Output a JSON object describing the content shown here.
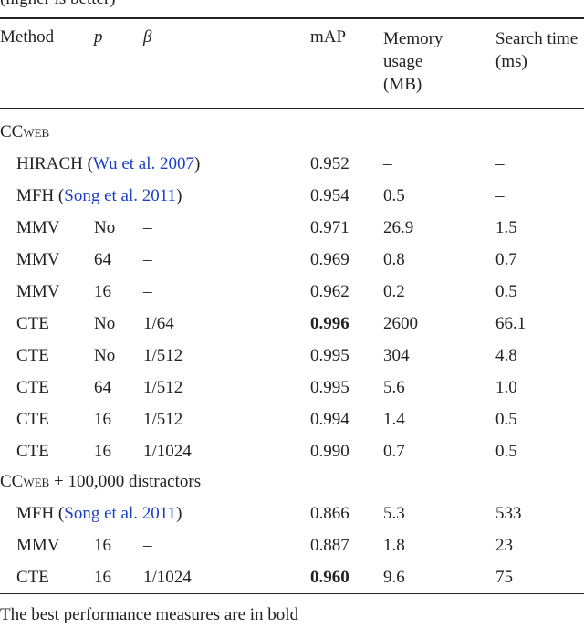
{
  "caption": "(higher is better)",
  "table": {
    "header": [
      "Method",
      "p",
      "β",
      "mAP",
      "Memory usage (MB)",
      "Search time (ms)"
    ],
    "sections": [
      {
        "name": "CCweb",
        "suffix": null,
        "rows": [
          {
            "cells": [
              [
                {
                  "text": "HIRACH ("
                },
                {
                  "text": "Wu et al. 2007",
                  "link": true
                },
                {
                  "text": ")"
                }
              ],
              "",
              "",
              "0.952",
              "–",
              "–"
            ]
          },
          {
            "cells": [
              [
                {
                  "text": "MFH ("
                },
                {
                  "text": "Song et al. 2011",
                  "link": true
                },
                {
                  "text": ")"
                }
              ],
              "",
              "",
              "0.954",
              "0.5",
              "–"
            ]
          },
          {
            "cells": [
              [
                {
                  "text": "MMV"
                }
              ],
              "No",
              "–",
              "0.971",
              "26.9",
              "1.5"
            ]
          },
          {
            "cells": [
              [
                {
                  "text": "MMV"
                }
              ],
              "64",
              "–",
              "0.969",
              "0.8",
              "0.7"
            ]
          },
          {
            "cells": [
              [
                {
                  "text": "MMV"
                }
              ],
              "16",
              "–",
              "0.962",
              "0.2",
              "0.5"
            ]
          },
          {
            "cells": [
              [
                {
                  "text": "CTE"
                }
              ],
              "No",
              "1/64",
              "0.996",
              "2600",
              "66.1"
            ],
            "bold_col": 3
          },
          {
            "cells": [
              [
                {
                  "text": "CTE"
                }
              ],
              "No",
              "1/512",
              "0.995",
              "304",
              "4.8"
            ]
          },
          {
            "cells": [
              [
                {
                  "text": "CTE"
                }
              ],
              "64",
              "1/512",
              "0.995",
              "5.6",
              "1.0"
            ]
          },
          {
            "cells": [
              [
                {
                  "text": "CTE"
                }
              ],
              "16",
              "1/512",
              "0.994",
              "1.4",
              "0.5"
            ]
          },
          {
            "cells": [
              [
                {
                  "text": "CTE"
                }
              ],
              "16",
              "1/1024",
              "0.990",
              "0.7",
              "0.5"
            ]
          }
        ]
      },
      {
        "name": "CCweb",
        "suffix": " + 100,000 distractors",
        "rows": [
          {
            "cells": [
              [
                {
                  "text": "MFH ("
                },
                {
                  "text": "Song et al. 2011",
                  "link": true
                },
                {
                  "text": ")"
                }
              ],
              "",
              "",
              "0.866",
              "5.3",
              "533"
            ]
          },
          {
            "cells": [
              [
                {
                  "text": "MMV"
                }
              ],
              "16",
              "–",
              "0.887",
              "1.8",
              "23"
            ]
          },
          {
            "cells": [
              [
                {
                  "text": "CTE"
                }
              ],
              "16",
              "1/1024",
              "0.960",
              "9.6",
              "75"
            ],
            "bold_col": 3
          }
        ]
      }
    ]
  },
  "footer": "The best performance measures are in bold"
}
